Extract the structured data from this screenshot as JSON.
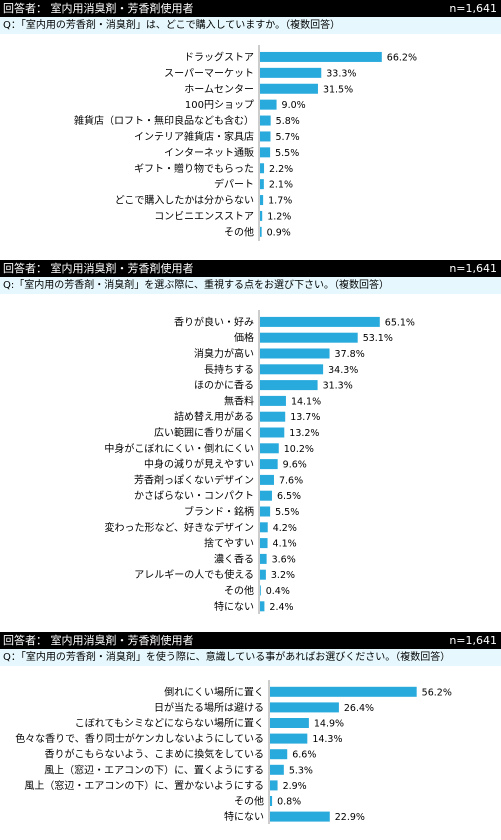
{
  "accent_color": "#29aadd",
  "chart_data": [
    {
      "type": "bar",
      "orientation": "horizontal",
      "respondents_label": "回答者： 室内用消臭剤・芳香剤使用者",
      "n_label": "n=1,641",
      "question": "Q：「室内用の芳香剤・消臭剤」は、どこで購入していますか。（複数回答）",
      "categories": [
        "ドラッグストア",
        "スーパーマーケット",
        "ホームセンター",
        "100円ショップ",
        "雑貨店（ロフト・無印良品なども含む）",
        "インテリア雑貨店・家具店",
        "インターネット通販",
        "ギフト・贈り物でもらった",
        "デパート",
        "どこで購入したかは分からない",
        "コンビニエンスストア",
        "その他"
      ],
      "values": [
        66.2,
        33.3,
        31.5,
        9.0,
        5.8,
        5.7,
        5.5,
        2.2,
        2.1,
        1.7,
        1.2,
        0.9
      ],
      "value_labels": [
        "66.2%",
        "33.3%",
        "31.5%",
        "9.0%",
        "5.8%",
        "5.7%",
        "5.5%",
        "2.2%",
        "2.1%",
        "1.7%",
        "1.2%",
        "0.9%"
      ],
      "unit": "%"
    },
    {
      "type": "bar",
      "orientation": "horizontal",
      "respondents_label": "回答者： 室内用消臭剤・芳香剤使用者",
      "n_label": "n=1,641",
      "question": "Q:「室内用の芳香剤・消臭剤」を選ぶ際に、重視する点をお選び下さい。（複数回答）",
      "categories": [
        "香りが良い・好み",
        "価格",
        "消臭力が高い",
        "長持ちする",
        "ほのかに香る",
        "無香料",
        "詰め替え用がある",
        "広い範囲に香りが届く",
        "中身がこぼれにくい・倒れにくい",
        "中身の減りが見えやすい",
        "芳香剤っぽくないデザイン",
        "かさばらない・コンパクト",
        "ブランド・銘柄",
        "変わった形など、好きなデザイン",
        "捨てやすい",
        "濃く香る",
        "アレルギーの人でも使える",
        "その他",
        "特にない"
      ],
      "values": [
        65.1,
        53.1,
        37.8,
        34.3,
        31.3,
        14.1,
        13.7,
        13.2,
        10.2,
        9.6,
        7.6,
        6.5,
        5.5,
        4.2,
        4.1,
        3.6,
        3.2,
        0.4,
        2.4
      ],
      "value_labels": [
        "65.1%",
        "53.1%",
        "37.8%",
        "34.3%",
        "31.3%",
        "14.1%",
        "13.7%",
        "13.2%",
        "10.2%",
        "9.6%",
        "7.6%",
        "6.5%",
        "5.5%",
        "4.2%",
        "4.1%",
        "3.6%",
        "3.2%",
        "0.4%",
        "2.4%"
      ],
      "unit": "%"
    },
    {
      "type": "bar",
      "orientation": "horizontal",
      "respondents_label": "回答者： 室内用消臭剤・芳香剤使用者",
      "n_label": "n=1,641",
      "question": "Q：「室内用の芳香剤・消臭剤」を使う際に、意識している事があればお選びください。（複数回答）",
      "categories": [
        "倒れにくい場所に置く",
        "日が当たる場所は避ける",
        "こぼれてもシミなどにならない場所に置く",
        "色々な香りで、香り同士がケンカしないようにしている",
        "香りがこもらないよう、こまめに換気をしている",
        "風上（窓辺・エアコンの下）に、置くようにする",
        "風上（窓辺・エアコンの下）に、置かないようにする",
        "その他",
        "特にない"
      ],
      "values": [
        56.2,
        26.4,
        14.9,
        14.3,
        6.6,
        5.3,
        2.9,
        0.8,
        22.9
      ],
      "value_labels": [
        "56.2%",
        "26.4%",
        "14.9%",
        "14.3%",
        "6.6%",
        "5.3%",
        "2.9%",
        "0.8%",
        "22.9%"
      ],
      "unit": "%"
    }
  ]
}
